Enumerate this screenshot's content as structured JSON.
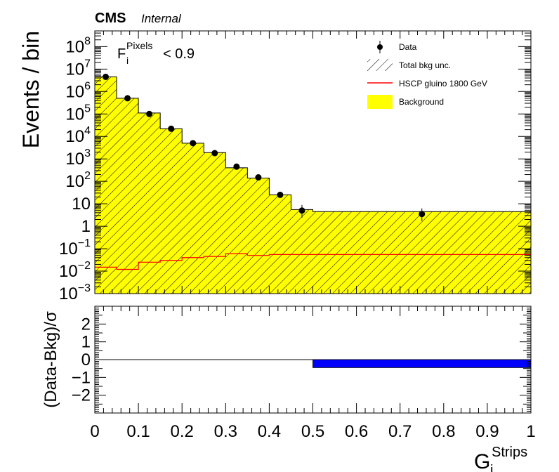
{
  "header": {
    "experiment": "CMS",
    "status": "Internal"
  },
  "cut_label": {
    "prefix": "F",
    "sup": "Pixels",
    "sub": "i",
    "text": "< 0.9"
  },
  "chart_data": [
    {
      "type": "bar",
      "panel": "main",
      "ylabel": "Events / bin",
      "yscale": "log",
      "ylim": [
        0.001,
        500000000
      ],
      "xlim": [
        0,
        1
      ],
      "ytick_labels": [
        {
          "value": 100000000,
          "base": "10",
          "exp": "8"
        },
        {
          "value": 10000000,
          "base": "10",
          "exp": "7"
        },
        {
          "value": 1000000,
          "base": "10",
          "exp": "6"
        },
        {
          "value": 100000,
          "base": "10",
          "exp": "5"
        },
        {
          "value": 10000,
          "base": "10",
          "exp": "4"
        },
        {
          "value": 1000,
          "base": "10",
          "exp": "3"
        },
        {
          "value": 100,
          "base": "10",
          "exp": "2"
        },
        {
          "value": 10,
          "base": "10",
          "exp": ""
        },
        {
          "value": 1,
          "base": "1",
          "exp": ""
        },
        {
          "value": 0.1,
          "base": "10",
          "exp": "−1"
        },
        {
          "value": 0.01,
          "base": "10",
          "exp": "−2"
        },
        {
          "value": 0.001,
          "base": "10",
          "exp": "−3"
        }
      ],
      "legend": {
        "position": "top-right",
        "entries": [
          {
            "label": "Data",
            "style": "marker"
          },
          {
            "label": "Total bkg unc.",
            "style": "hatch"
          },
          {
            "label": "HSCP gluino 1800 GeV",
            "style": "line"
          },
          {
            "label": "Background",
            "style": "fill"
          }
        ]
      },
      "colors": {
        "background": "#ffff00",
        "signal": "#ff0000",
        "hatch": "#000000"
      },
      "bin_edges": [
        0,
        0.05,
        0.1,
        0.15,
        0.2,
        0.25,
        0.3,
        0.35,
        0.4,
        0.45,
        0.5,
        1.0
      ],
      "series": [
        {
          "name": "Background",
          "values": [
            4500000,
            500000,
            110000,
            22000,
            5000,
            1900,
            400,
            140,
            25,
            5.5,
            4.5
          ]
        },
        {
          "name": "HSCP gluino 1800 GeV",
          "values": [
            0.015,
            0.012,
            0.025,
            0.03,
            0.04,
            0.045,
            0.06,
            0.05,
            0.055,
            0.055,
            0.055
          ]
        },
        {
          "name": "Data",
          "x": [
            0.025,
            0.075,
            0.125,
            0.175,
            0.225,
            0.275,
            0.325,
            0.375,
            0.425,
            0.475,
            0.75
          ],
          "values": [
            4500000,
            500000,
            100000,
            22000,
            5000,
            1800,
            450,
            150,
            25,
            5,
            3.5
          ]
        }
      ]
    },
    {
      "type": "bar",
      "panel": "ratio",
      "ylabel": "(Data-Bkg)/σ",
      "ylim": [
        -3,
        3
      ],
      "xlim": [
        0,
        1
      ],
      "xlabel": {
        "base": "G",
        "sup": "Strips",
        "sub": "i"
      },
      "ytick_labels": [
        {
          "value": 2,
          "text": "2"
        },
        {
          "value": 1,
          "text": "1"
        },
        {
          "value": 0,
          "text": "0"
        },
        {
          "value": -1,
          "text": "−1"
        },
        {
          "value": -2,
          "text": "−2"
        }
      ],
      "xtick_labels": [
        {
          "value": 0,
          "text": "0"
        },
        {
          "value": 0.1,
          "text": "0.1"
        },
        {
          "value": 0.2,
          "text": "0.2"
        },
        {
          "value": 0.3,
          "text": "0.3"
        },
        {
          "value": 0.4,
          "text": "0.4"
        },
        {
          "value": 0.5,
          "text": "0.5"
        },
        {
          "value": 0.6,
          "text": "0.6"
        },
        {
          "value": 0.7,
          "text": "0.7"
        },
        {
          "value": 0.8,
          "text": "0.8"
        },
        {
          "value": 0.9,
          "text": "0.9"
        },
        {
          "value": 1,
          "text": "1"
        }
      ],
      "colors": {
        "bars": "#0000ff"
      },
      "bin_edges": [
        0,
        0.05,
        0.1,
        0.15,
        0.2,
        0.25,
        0.3,
        0.35,
        0.4,
        0.45,
        0.5,
        1.0
      ],
      "values": [
        0,
        0,
        0,
        0,
        0,
        0,
        0,
        0,
        0,
        0,
        -0.45
      ]
    }
  ]
}
